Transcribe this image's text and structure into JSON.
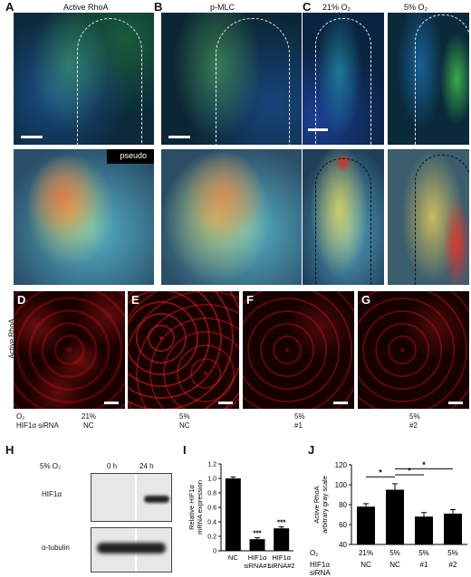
{
  "panels": {
    "A": {
      "letter": "A",
      "title": "Active RhoA",
      "pseudo_label": "pseudo"
    },
    "B": {
      "letter": "B",
      "title": "p-MLC"
    },
    "C": {
      "letter": "C",
      "title_left": "21% O₂",
      "title_right": "5% O₂"
    },
    "D": {
      "letter": "D",
      "side_label": "Active RhoA"
    },
    "E": {
      "letter": "E"
    },
    "F": {
      "letter": "F"
    },
    "G": {
      "letter": "G"
    }
  },
  "conditions": {
    "row1_label": "O₂",
    "row2_label": "HIF1α siRNA",
    "cols": [
      {
        "o2": "21%",
        "sirna": "NC"
      },
      {
        "o2": "5%",
        "sirna": "NC"
      },
      {
        "o2": "5%",
        "sirna": "#1"
      },
      {
        "o2": "5%",
        "sirna": "#2"
      }
    ]
  },
  "panel_H": {
    "letter": "H",
    "condition": "5% O₂",
    "times": [
      "0 h",
      "24 h"
    ],
    "blots": [
      "HIF1α",
      "α-tubulin"
    ]
  },
  "panel_I": {
    "letter": "I",
    "chart_data": {
      "type": "bar",
      "ylabel": "Relative HIF1α mRNA expression",
      "ylabel_lines": [
        "Relative HIF1α",
        "mRNA expression"
      ],
      "ylim": [
        0,
        1.2
      ],
      "yticks": [
        "0",
        "0.2",
        "0.4",
        "0.6",
        "0.8",
        "1.0",
        "1.2"
      ],
      "categories": [
        "NC",
        "HIF1α siRNA#1",
        "HIF1α siRNA#2"
      ],
      "category_lines": [
        [
          "NC"
        ],
        [
          "HIF1α",
          "siRNA#1"
        ],
        [
          "HIF1α",
          "siRNA#2"
        ]
      ],
      "values": [
        1.0,
        0.16,
        0.31
      ],
      "errors": [
        0.02,
        0.02,
        0.02
      ],
      "annotations": [
        "",
        "***",
        "***"
      ],
      "color": "#000000"
    }
  },
  "panel_J": {
    "letter": "J",
    "chart_data": {
      "type": "bar",
      "ylabel_lines": [
        "Active RhoA",
        "arbitrary gray scale"
      ],
      "ylim": [
        40,
        120
      ],
      "yticks": [
        "40",
        "60",
        "80",
        "100",
        "120"
      ],
      "row_labels": [
        "O₂",
        "HIF1α siRNA"
      ],
      "o2": [
        "21%",
        "5%",
        "5%",
        "5%"
      ],
      "sirna": [
        "NC",
        "NC",
        "#1",
        "#2"
      ],
      "values": [
        78,
        95,
        68,
        71
      ],
      "errors": [
        3,
        6,
        4,
        4
      ],
      "significance": [
        "*",
        "*",
        "*"
      ],
      "color": "#000000"
    }
  }
}
